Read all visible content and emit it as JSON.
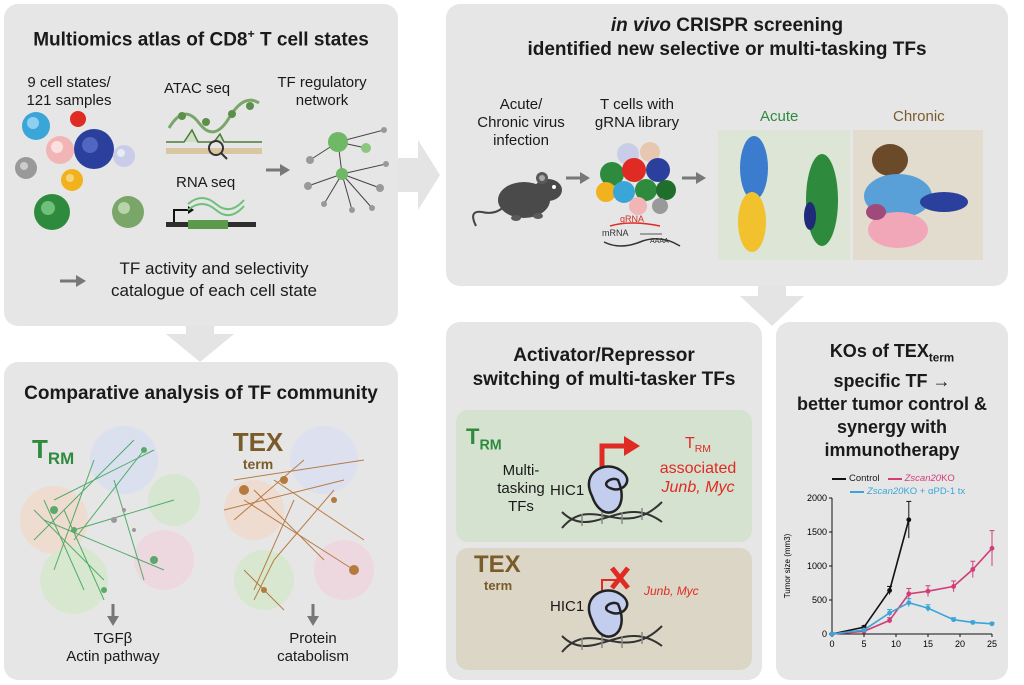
{
  "panel1": {
    "title_pre": "Multiomics atlas of CD8",
    "title_sup": "+",
    "title_post": " T cell states",
    "cell_states_l1": "9 cell states/",
    "cell_states_l2": "121 samples",
    "atac": "ATAC seq",
    "rna": "RNA seq",
    "tf_net_l1": "TF regulatory",
    "tf_net_l2": "network",
    "catalogue_l1": "TF activity and selectivity",
    "catalogue_l2": "catalogue of each cell state"
  },
  "panel2": {
    "title_italic": "in vivo",
    "title_rest": " CRISPR screening",
    "title_l2": "identified new selective or multi-tasking TFs",
    "infection_l1": "Acute/",
    "infection_l2": "Chronic virus",
    "infection_l3": "infection",
    "tcells_l1": "T cells with",
    "tcells_l2": "gRNA library",
    "grna": "gRNA",
    "mrna": "mRNA",
    "aaaa": "AAAA",
    "acute": "Acute",
    "chronic": "Chronic",
    "colors": {
      "acute": "#2e8b3e",
      "chronic": "#7a5c2a"
    }
  },
  "panel3": {
    "title": "Comparative analysis of TF community",
    "trm_main": "T",
    "trm_sub": "RM",
    "tex_main": "TEX",
    "tex_sub": "term",
    "left_out_l1": "TGFβ",
    "left_out_l2": "Actin pathway",
    "right_out_l1": "Protein",
    "right_out_l2": "catabolism"
  },
  "panel4": {
    "title_l1": "Activator/Repressor",
    "title_l2": "switching of multi-tasker TFs",
    "trm_main": "T",
    "trm_sub": "RM",
    "multi_l1": "Multi-",
    "multi_l2": "tasking",
    "multi_l3": "TFs",
    "hic1": "HIC1",
    "assoc_main": "T",
    "assoc_sub": "RM",
    "assoc_l2": "associated",
    "genes": "Junb, Myc",
    "tex_main": "TEX",
    "tex_sub": "term",
    "hic1_b": "HIC1",
    "genes_b": "Junb, Myc"
  },
  "panel5": {
    "title_l1_pre": "KOs of TEX",
    "title_l1_sub": "term",
    "title_l2": "specific TF →",
    "title_l3": "better tumor control &",
    "title_l4": "synergy with",
    "title_l5": "immunotherapy"
  },
  "chart_data": {
    "type": "line",
    "xlabel": "",
    "ylabel": "Tumor size (mm3)",
    "xlim": [
      0,
      25
    ],
    "ylim": [
      0,
      2000
    ],
    "xticks": [
      0,
      5,
      10,
      15,
      20,
      25
    ],
    "yticks": [
      0,
      500,
      1000,
      1500,
      2000
    ],
    "legend_placement": "top",
    "series": [
      {
        "name": "Control",
        "color": "#111111",
        "x": [
          0,
          5,
          9,
          12
        ],
        "y": [
          0,
          100,
          640,
          1680
        ],
        "err": [
          0,
          20,
          60,
          270
        ]
      },
      {
        "name": "Zscan20 KO",
        "color": "#d23c78",
        "x": [
          0,
          5,
          9,
          12,
          15,
          19,
          22,
          25
        ],
        "y": [
          0,
          40,
          200,
          590,
          630,
          700,
          950,
          1260
        ],
        "err": [
          0,
          10,
          40,
          80,
          80,
          80,
          120,
          260
        ]
      },
      {
        "name": "Zscan20 KO + αPD-1 tx",
        "color": "#3aa6d8",
        "x": [
          0,
          5,
          9,
          12,
          15,
          19,
          22,
          25
        ],
        "y": [
          0,
          60,
          310,
          460,
          380,
          210,
          170,
          150
        ],
        "err": [
          0,
          15,
          50,
          60,
          50,
          30,
          20,
          20
        ]
      }
    ],
    "legend_labels": {
      "s0": "Control",
      "s1_it": "Zscan20",
      "s1_rest": " KO",
      "s2_it": "Zscan20",
      "s2_rest": " KO + αPD-1 tx"
    }
  }
}
